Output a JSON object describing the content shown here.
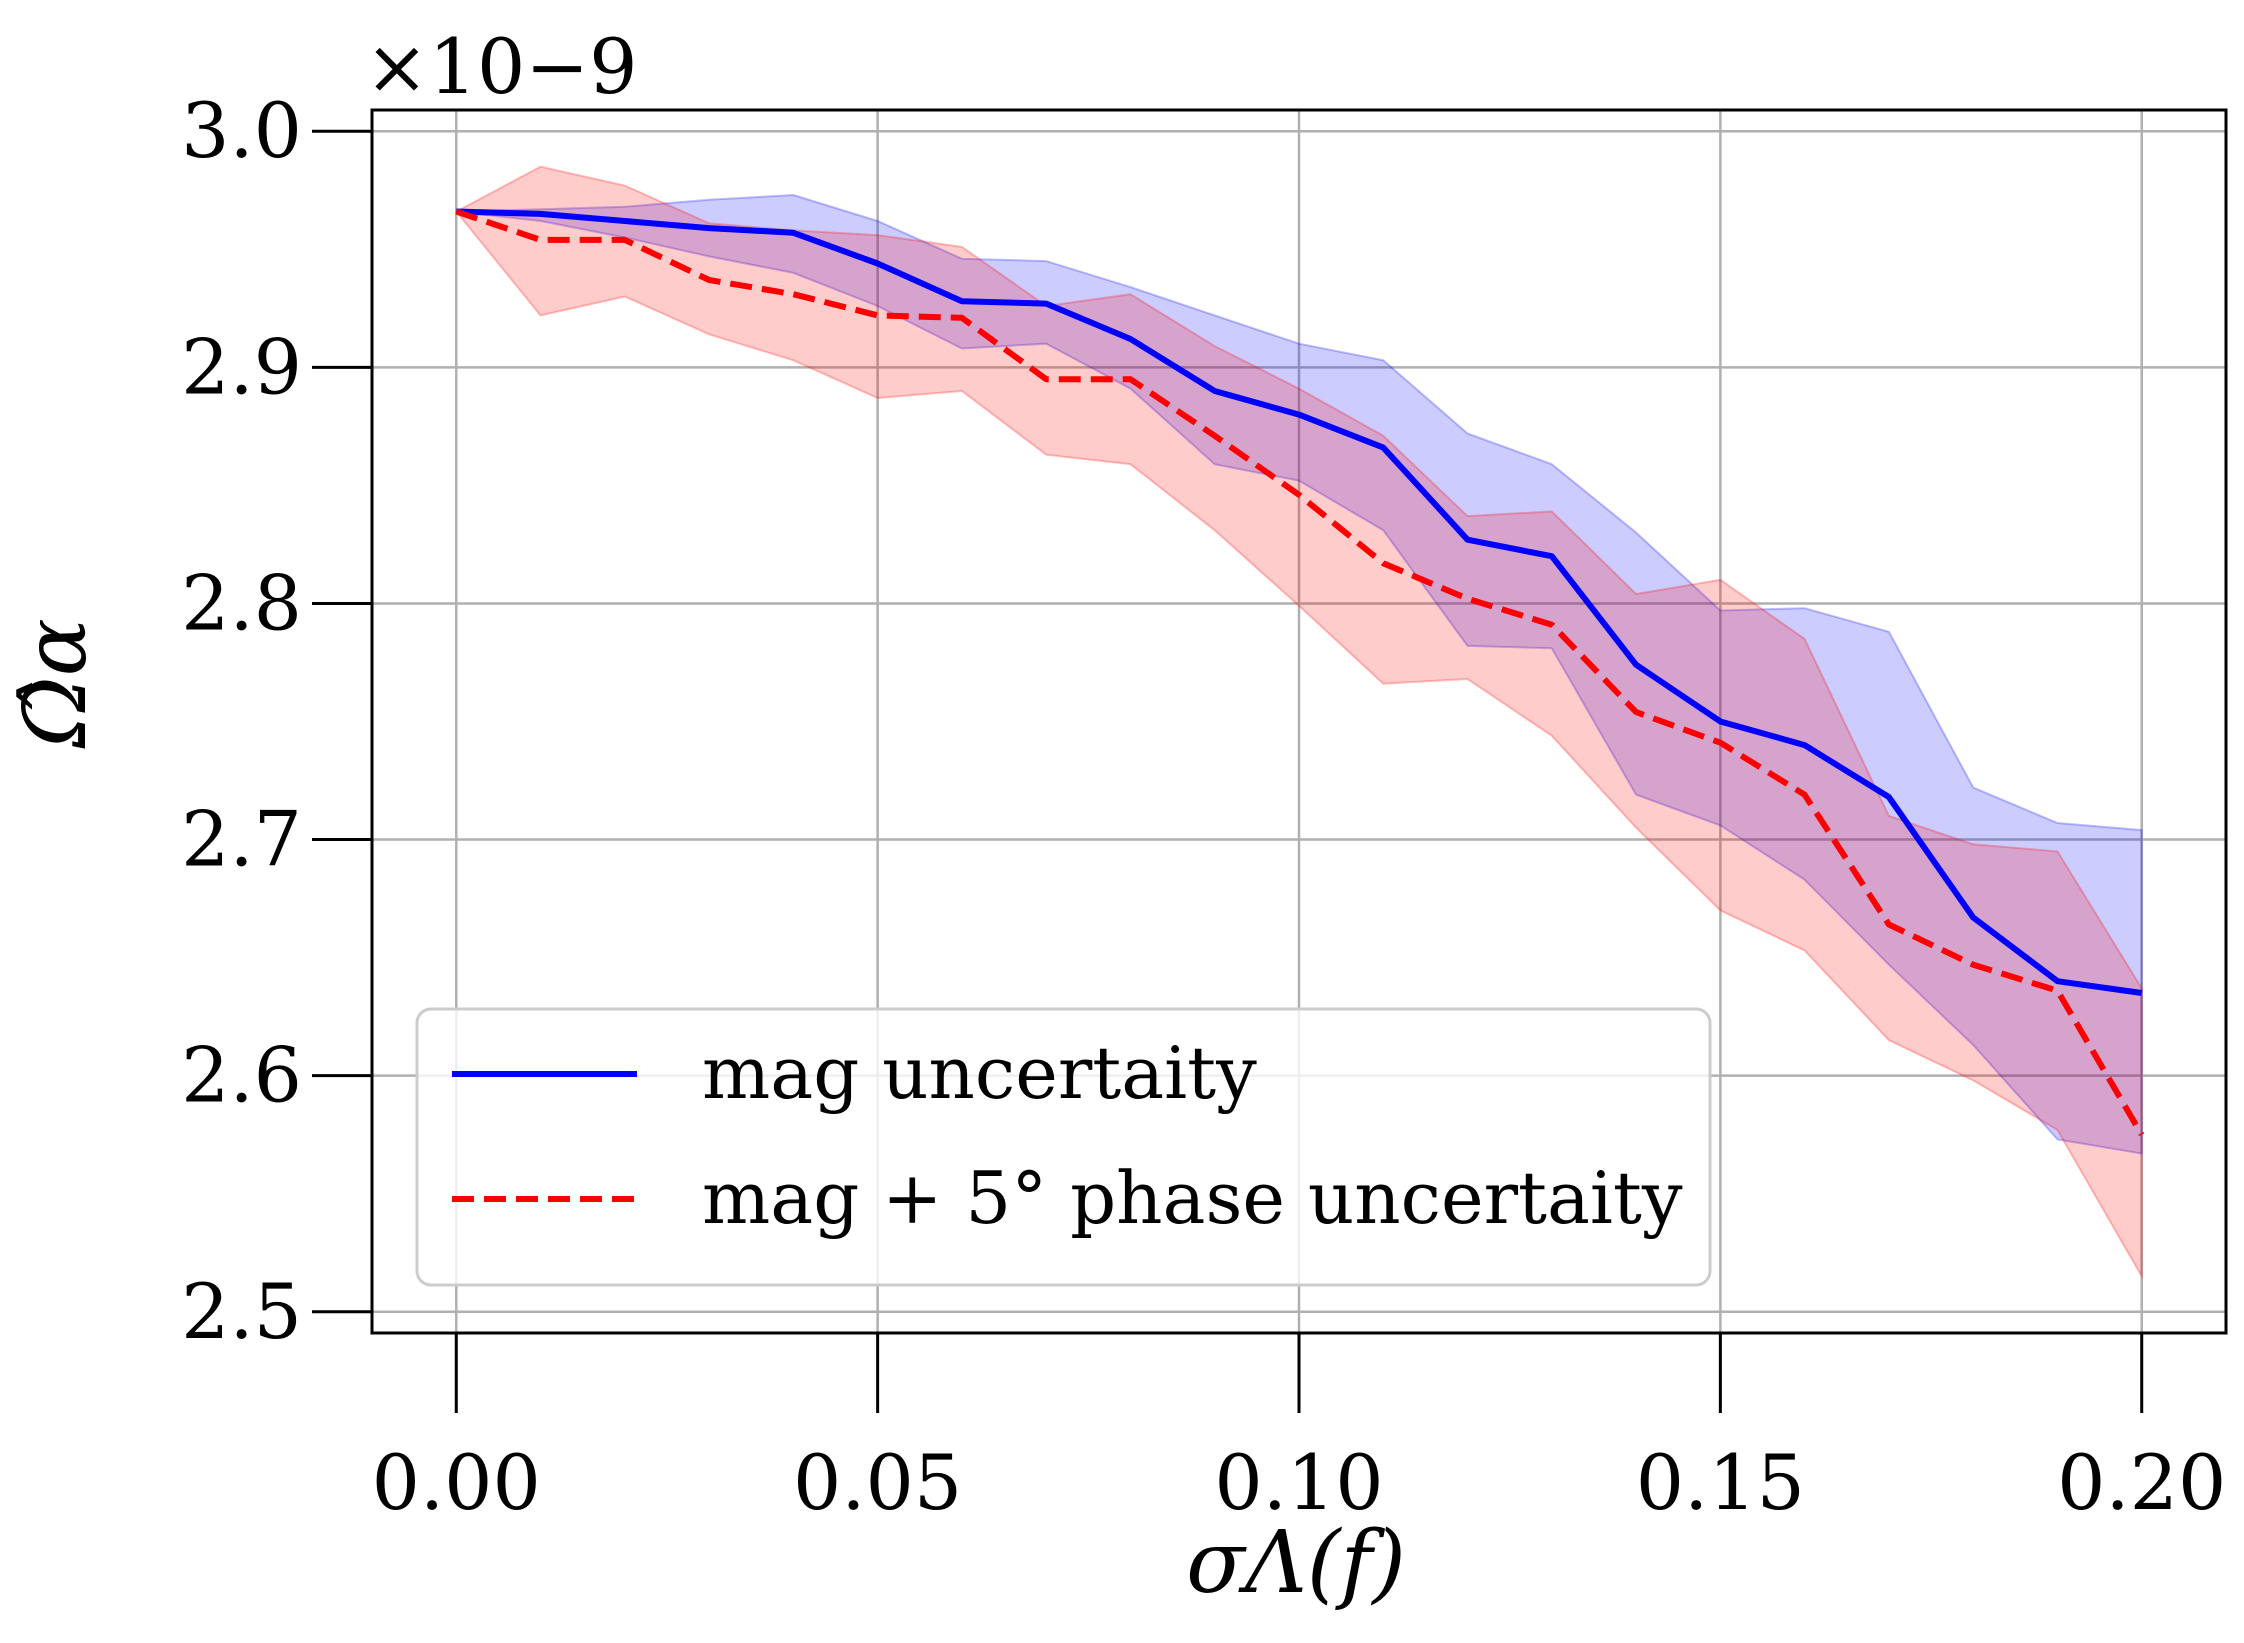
{
  "chart_data": {
    "type": "line",
    "xlabel": "σΛ(f)",
    "ylabel": "Ω̂α",
    "y_multiplier": "×10−9",
    "xlim": [
      -0.01,
      0.21
    ],
    "ylim": [
      2.491,
      3.009
    ],
    "x_ticks": [
      0.0,
      0.05,
      0.1,
      0.15,
      0.2
    ],
    "x_tick_labels": [
      "0.00",
      "0.05",
      "0.10",
      "0.15",
      "0.20"
    ],
    "y_ticks": [
      2.5,
      2.6,
      2.7,
      2.8,
      2.9,
      3.0
    ],
    "y_tick_labels": [
      "2.5",
      "2.6",
      "2.7",
      "2.8",
      "2.9",
      "3.0"
    ],
    "grid": true,
    "legend_position": "lower-left",
    "x": [
      0.0,
      0.01,
      0.02,
      0.03,
      0.04,
      0.05,
      0.06,
      0.07,
      0.08,
      0.09,
      0.1,
      0.11,
      0.12,
      0.13,
      0.14,
      0.15,
      0.16,
      0.17,
      0.18,
      0.19,
      0.2
    ],
    "series": [
      {
        "name": "mag uncertaity",
        "color": "#0000ff",
        "line_style": "solid",
        "band_color": "#0000ff",
        "values": [
          2.966,
          2.965,
          2.962,
          2.959,
          2.957,
          2.944,
          2.928,
          2.927,
          2.912,
          2.89,
          2.88,
          2.866,
          2.827,
          2.82,
          2.774,
          2.75,
          2.74,
          2.718,
          2.667,
          2.64,
          2.635
        ],
        "upper": [
          2.966,
          2.967,
          2.968,
          2.971,
          2.973,
          2.962,
          2.946,
          2.945,
          2.934,
          2.922,
          2.91,
          2.903,
          2.872,
          2.859,
          2.83,
          2.797,
          2.798,
          2.788,
          2.722,
          2.707,
          2.704
        ],
        "lower": [
          2.966,
          2.962,
          2.955,
          2.947,
          2.94,
          2.926,
          2.908,
          2.91,
          2.891,
          2.859,
          2.852,
          2.831,
          2.782,
          2.781,
          2.719,
          2.706,
          2.683,
          2.647,
          2.613,
          2.573,
          2.567
        ]
      },
      {
        "name": "mag + 5° phase uncertaity",
        "color": "#ff0000",
        "line_style": "dashed",
        "band_color": "#ff0000",
        "values": [
          2.966,
          2.954,
          2.954,
          2.937,
          2.931,
          2.922,
          2.921,
          2.895,
          2.895,
          2.871,
          2.846,
          2.817,
          2.802,
          2.791,
          2.754,
          2.741,
          2.719,
          2.664,
          2.647,
          2.636,
          2.575
        ],
        "upper": [
          2.966,
          2.985,
          2.977,
          2.961,
          2.958,
          2.956,
          2.951,
          2.926,
          2.931,
          2.909,
          2.891,
          2.871,
          2.837,
          2.839,
          2.804,
          2.81,
          2.785,
          2.71,
          2.698,
          2.695,
          2.637
        ],
        "lower": [
          2.966,
          2.922,
          2.93,
          2.914,
          2.903,
          2.887,
          2.89,
          2.863,
          2.859,
          2.831,
          2.799,
          2.766,
          2.768,
          2.744,
          2.705,
          2.67,
          2.653,
          2.615,
          2.598,
          2.577,
          2.515
        ]
      }
    ]
  }
}
